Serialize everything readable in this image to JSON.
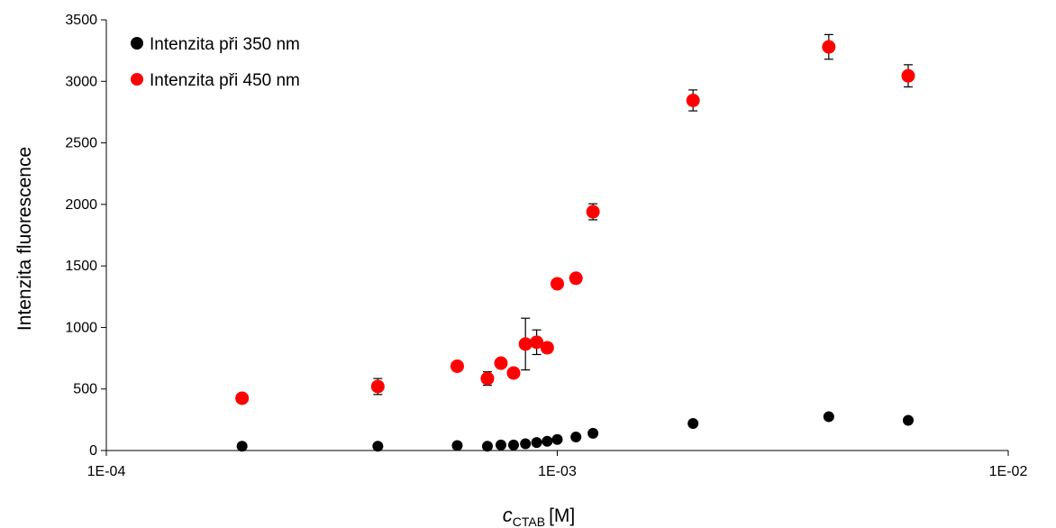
{
  "chart_data": {
    "type": "scatter",
    "title": "",
    "xlabel_main": "c",
    "xlabel_sub": "CTAB",
    "xlabel_unit": "[M]",
    "ylabel": "Intenzita fluorescence",
    "xscale": "log",
    "xlim": [
      0.0001,
      0.01
    ],
    "ylim": [
      0,
      3500
    ],
    "x_ticks": [
      0.0001,
      0.001,
      0.01
    ],
    "x_tick_labels": [
      "1E-04",
      "1E-03",
      "1E-02"
    ],
    "y_ticks": [
      0,
      500,
      1000,
      1500,
      2000,
      2500,
      3000,
      3500
    ],
    "y_tick_labels": [
      "0",
      "500",
      "1000",
      "1500",
      "2000",
      "2500",
      "3000",
      "3500"
    ],
    "grid": false,
    "legend_position": "top-left",
    "series": [
      {
        "name": "Intenzita při 350 nm",
        "color": "#000000",
        "x": [
          0.0002,
          0.0004,
          0.0006,
          0.0007,
          0.00075,
          0.0008,
          0.00085,
          0.0009,
          0.00095,
          0.001,
          0.0011,
          0.0012,
          0.002,
          0.004,
          0.006
        ],
        "y": [
          35,
          35,
          40,
          35,
          45,
          45,
          55,
          65,
          75,
          90,
          110,
          140,
          220,
          275,
          245
        ]
      },
      {
        "name": "Intenzita při 450 nm",
        "color": "#ff0000",
        "x": [
          0.0002,
          0.0004,
          0.0006,
          0.0007,
          0.00075,
          0.0008,
          0.00085,
          0.0009,
          0.00095,
          0.001,
          0.0011,
          0.0012,
          0.002,
          0.004,
          0.006
        ],
        "y": [
          425,
          520,
          685,
          585,
          710,
          630,
          865,
          880,
          835,
          1355,
          1400,
          1940,
          2845,
          3280,
          3045
        ],
        "err": [
          0,
          65,
          0,
          55,
          0,
          35,
          210,
          100,
          40,
          30,
          35,
          65,
          85,
          100,
          90
        ]
      }
    ]
  }
}
